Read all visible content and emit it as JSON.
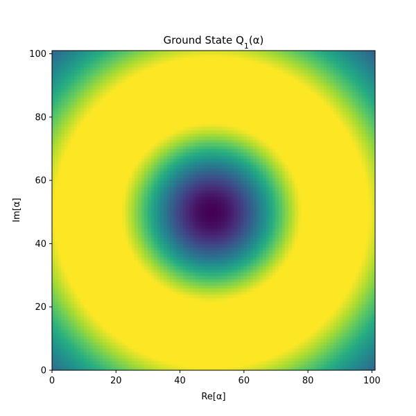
{
  "chart_data": {
    "type": "heatmap",
    "title": "Ground State Q",
    "title_subscript": "1",
    "title_suffix": "(α)",
    "xlabel": "Re[α]",
    "ylabel": "Im[α]",
    "xlim": [
      0,
      101
    ],
    "ylim": [
      0,
      101
    ],
    "xticks": [
      0,
      20,
      40,
      60,
      80,
      100
    ],
    "yticks": [
      0,
      20,
      40,
      60,
      80,
      100
    ],
    "grid_size": 101,
    "center": [
      50,
      50
    ],
    "ring_radius": 27,
    "colormap": "viridis",
    "description_function": "ring-shaped distribution with minimum at center, maximum on ring, decaying outward"
  }
}
